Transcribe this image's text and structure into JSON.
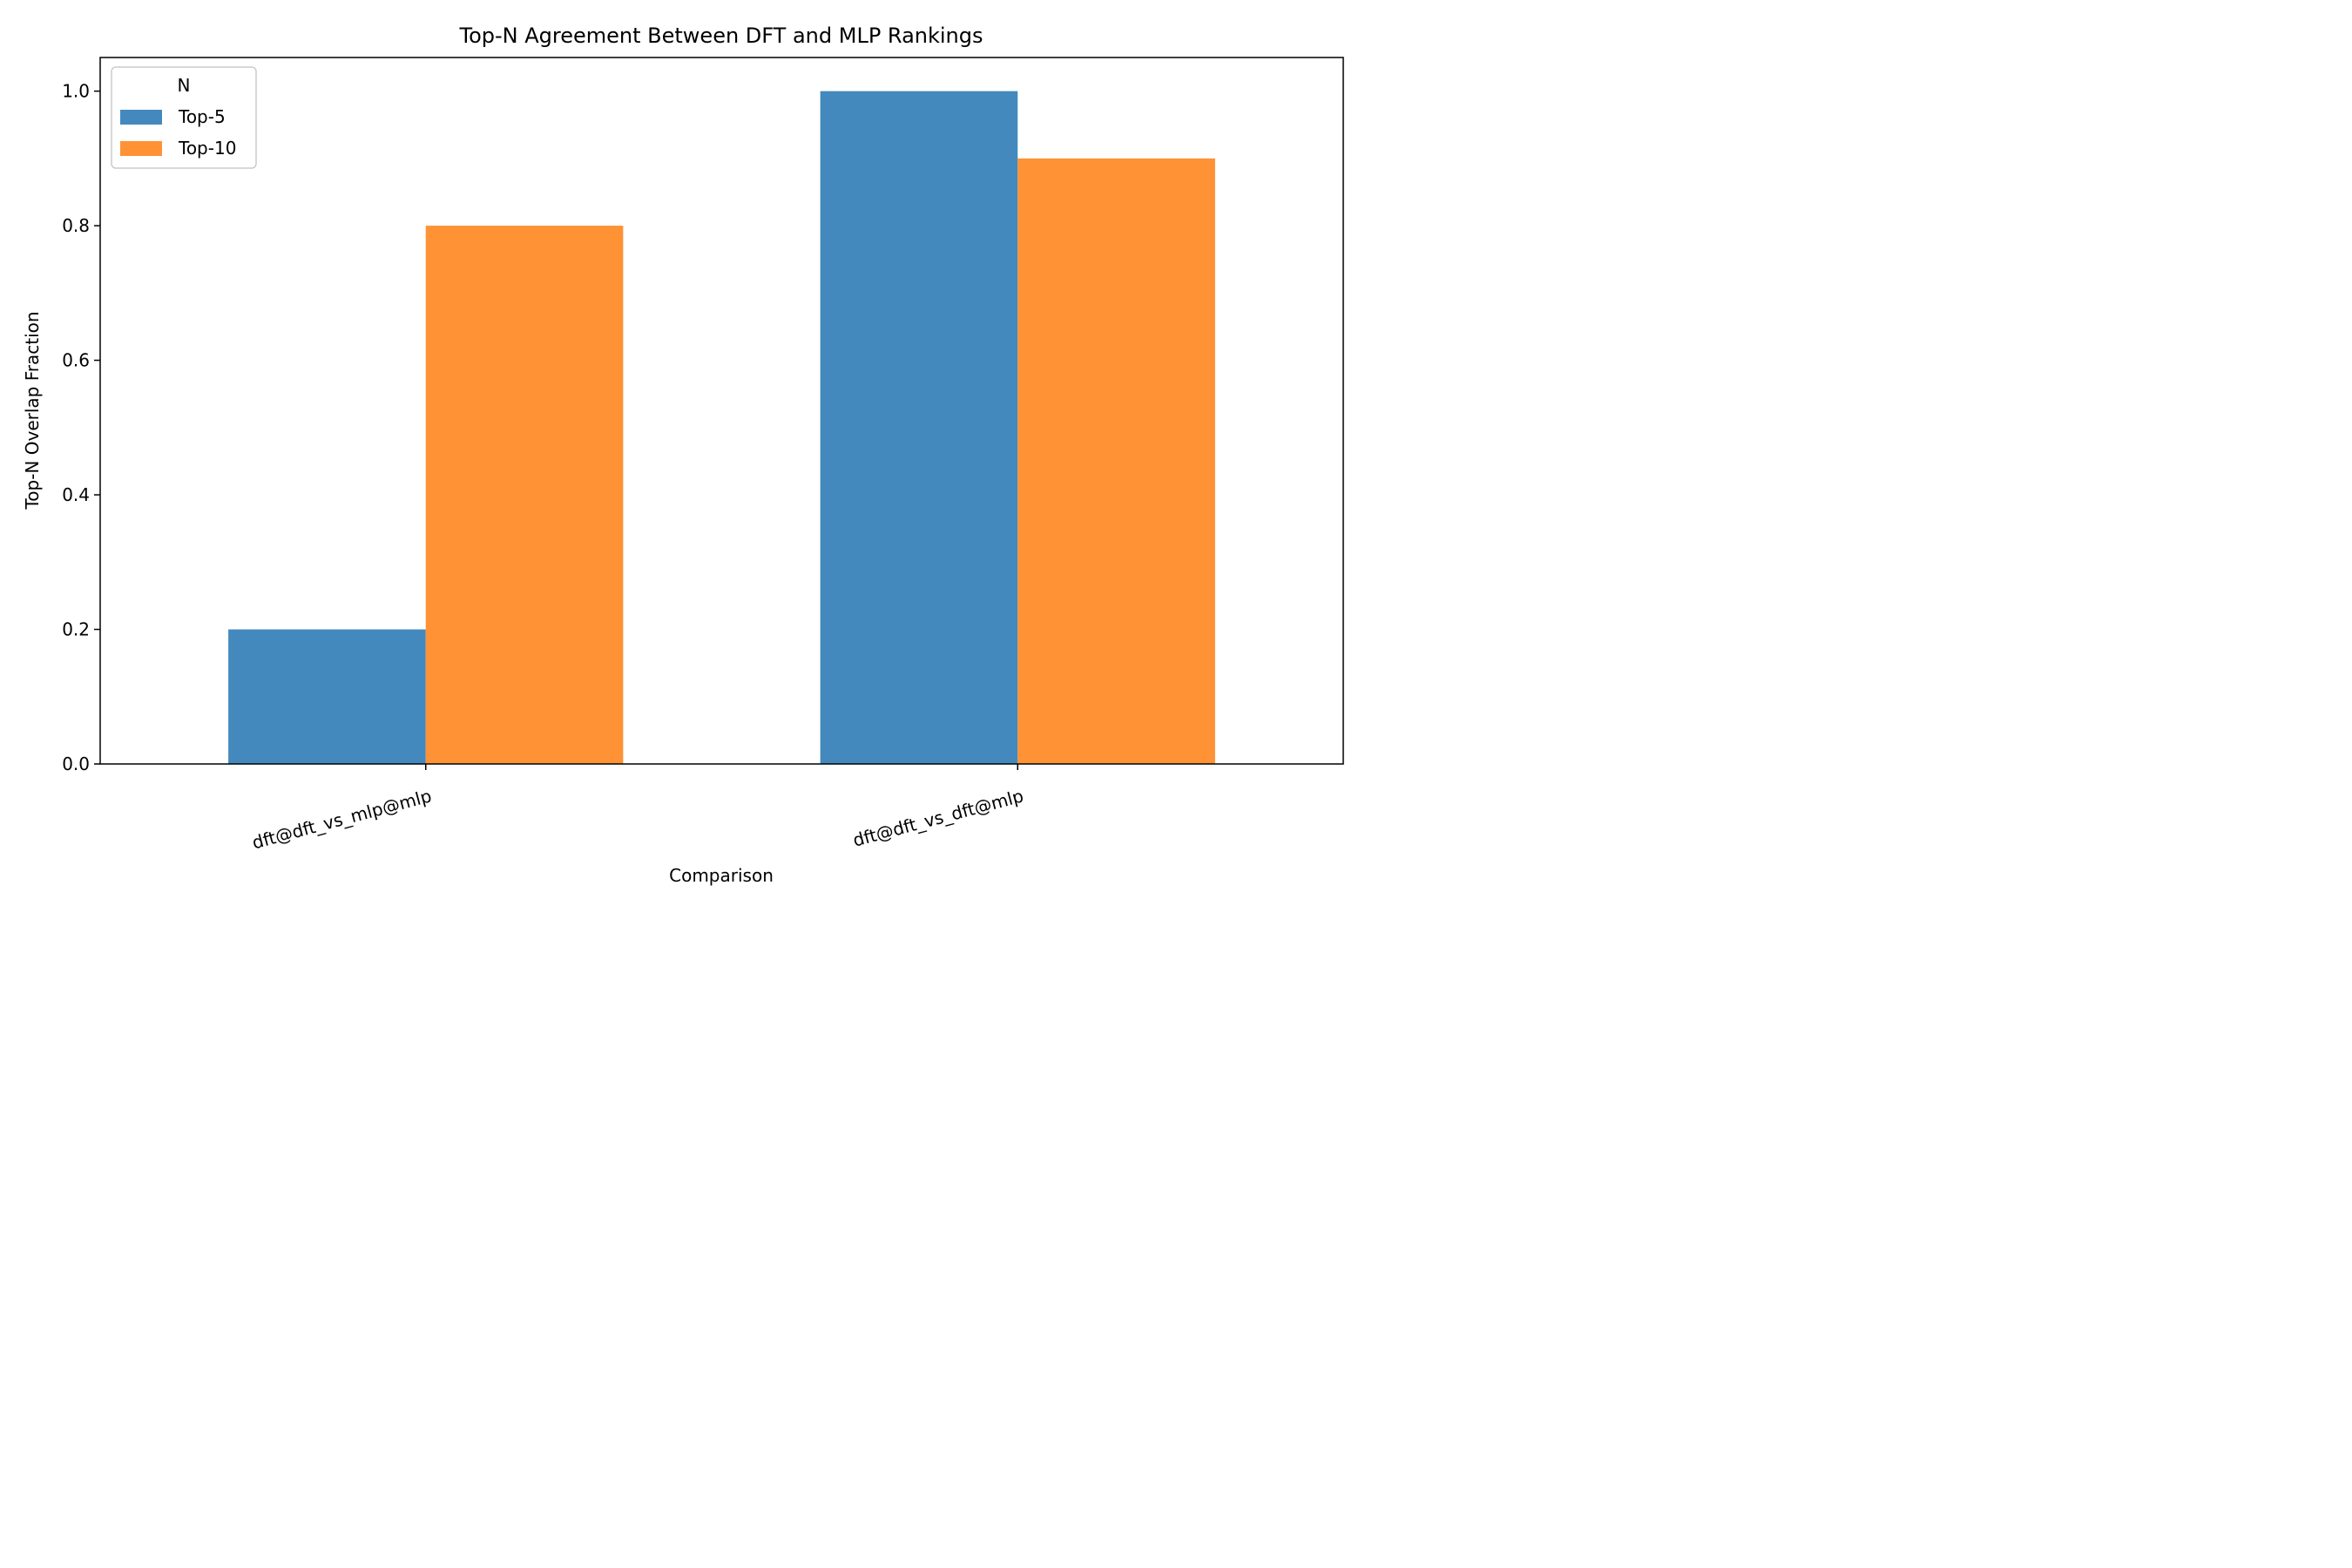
{
  "chart_data": {
    "type": "bar",
    "title": "Top-N Agreement Between DFT and MLP Rankings",
    "xlabel": "Comparison",
    "ylabel": "Top-N Overlap Fraction",
    "categories": [
      "dft@dft_vs_mlp@mlp",
      "dft@dft_vs_dft@mlp"
    ],
    "series": [
      {
        "name": "Top-5",
        "values": [
          0.2,
          1.0
        ],
        "color": "#4389bd"
      },
      {
        "name": "Top-10",
        "values": [
          0.8,
          0.9
        ],
        "color": "#fe9235"
      }
    ],
    "ylim": [
      0,
      1.05
    ],
    "yticks": [
      0.0,
      0.2,
      0.4,
      0.6,
      0.8,
      1.0
    ],
    "ytick_labels": [
      "0.0",
      "0.2",
      "0.4",
      "0.6",
      "0.8",
      "1.0"
    ],
    "grid": false,
    "legend": {
      "title": "N",
      "placement": "top-left"
    }
  }
}
